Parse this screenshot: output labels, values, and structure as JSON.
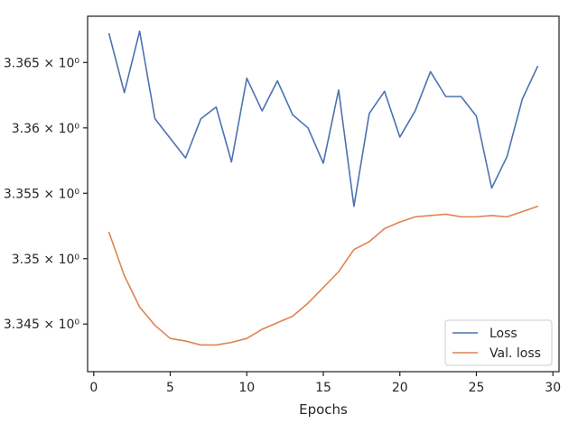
{
  "chart_data": {
    "type": "line",
    "title": "",
    "xlabel": "Epochs",
    "ylabel": "",
    "xlim": [
      -0.4,
      30.4
    ],
    "ylim": [
      3.34136,
      3.36854
    ],
    "grid": false,
    "legend_position": "lower-right",
    "x_ticks": [
      0,
      5,
      10,
      15,
      20,
      25,
      30
    ],
    "x_tick_labels": [
      "0",
      "5",
      "10",
      "15",
      "20",
      "25",
      "30"
    ],
    "y_ticks": [
      3.345,
      3.35,
      3.355,
      3.36,
      3.365
    ],
    "y_tick_labels": [
      "3.345 × 10⁰",
      "3.35 × 10⁰",
      "3.355 × 10⁰",
      "3.36 × 10⁰",
      "3.365 × 10⁰"
    ],
    "x": [
      1,
      2,
      3,
      4,
      5,
      6,
      7,
      8,
      9,
      10,
      11,
      12,
      13,
      14,
      15,
      16,
      17,
      18,
      19,
      20,
      21,
      22,
      23,
      24,
      25,
      26,
      27,
      28,
      29
    ],
    "series": [
      {
        "name": "Loss",
        "color": "#4c72b0",
        "values": [
          3.3672,
          3.3627,
          3.3674,
          3.3607,
          3.3592,
          3.3577,
          3.3607,
          3.3616,
          3.3574,
          3.3638,
          3.3613,
          3.3636,
          3.361,
          3.36,
          3.3573,
          3.3629,
          3.354,
          3.3611,
          3.3628,
          3.3593,
          3.3613,
          3.3643,
          3.3624,
          3.3624,
          3.3609,
          3.3554,
          3.3578,
          3.3622,
          3.3647
        ]
      },
      {
        "name": "Val. loss",
        "color": "#dd8452",
        "values": [
          3.352,
          3.3487,
          3.3463,
          3.3449,
          3.3439,
          3.3437,
          3.3434,
          3.3434,
          3.3436,
          3.3439,
          3.3446,
          3.3451,
          3.3456,
          3.3466,
          3.3478,
          3.349,
          3.3507,
          3.3513,
          3.3523,
          3.3528,
          3.3532,
          3.3533,
          3.3534,
          3.3532,
          3.3532,
          3.3533,
          3.3532,
          3.3536,
          3.354
        ]
      }
    ]
  }
}
